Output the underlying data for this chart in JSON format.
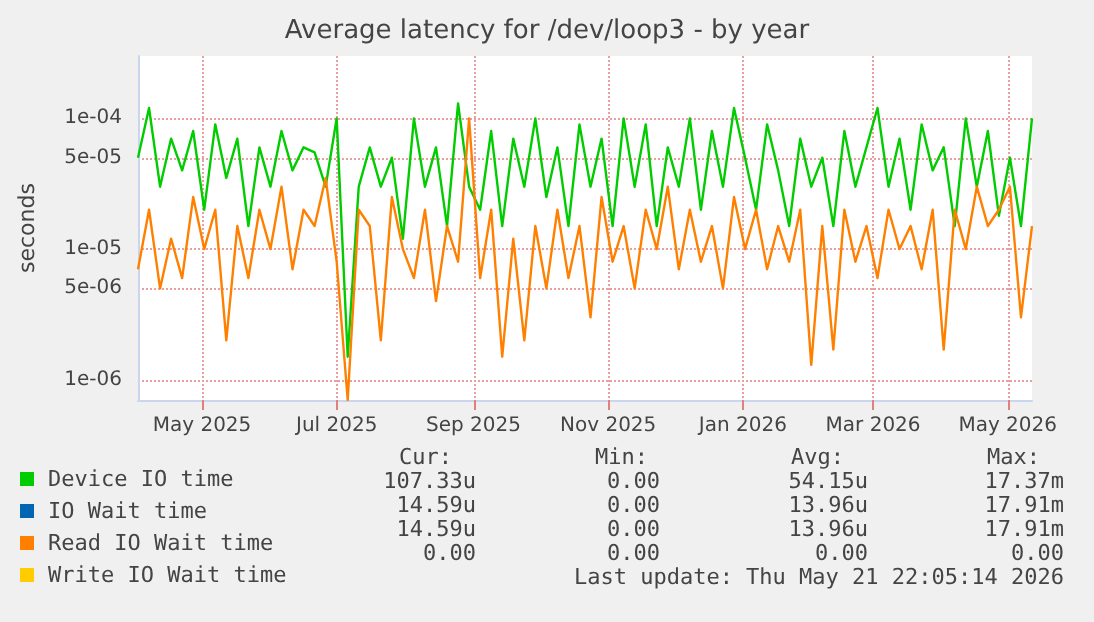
{
  "chart_data": {
    "type": "line",
    "title": "Average latency for /dev/loop3 - by year",
    "ylabel": "seconds",
    "x": [
      "2025-04-02",
      "2025-04-07",
      "2025-04-12",
      "2025-04-17",
      "2025-04-22",
      "2025-04-27",
      "2025-05-02",
      "2025-05-07",
      "2025-05-12",
      "2025-05-17",
      "2025-05-22",
      "2025-05-27",
      "2025-06-01",
      "2025-06-06",
      "2025-06-11",
      "2025-06-16",
      "2025-06-21",
      "2025-06-26",
      "2025-07-01",
      "2025-07-06",
      "2025-07-11",
      "2025-07-16",
      "2025-07-21",
      "2025-07-26",
      "2025-07-31",
      "2025-08-05",
      "2025-08-10",
      "2025-08-15",
      "2025-08-20",
      "2025-08-25",
      "2025-08-30",
      "2025-09-04",
      "2025-09-09",
      "2025-09-14",
      "2025-09-19",
      "2025-09-24",
      "2025-09-29",
      "2025-10-04",
      "2025-10-09",
      "2025-10-14",
      "2025-10-19",
      "2025-10-24",
      "2025-10-29",
      "2025-11-03",
      "2025-11-08",
      "2025-11-13",
      "2025-11-18",
      "2025-11-23",
      "2025-11-28",
      "2025-12-03",
      "2025-12-08",
      "2025-12-13",
      "2025-12-18",
      "2025-12-23",
      "2025-12-28",
      "2026-01-02",
      "2026-01-07",
      "2026-01-12",
      "2026-01-17",
      "2026-01-22",
      "2026-01-27",
      "2026-02-01",
      "2026-02-06",
      "2026-02-11",
      "2026-02-16",
      "2026-02-21",
      "2026-02-26",
      "2026-03-03",
      "2026-03-08",
      "2026-03-13",
      "2026-03-18",
      "2026-03-23",
      "2026-03-28",
      "2026-04-02",
      "2026-04-07",
      "2026-04-12",
      "2026-04-17",
      "2026-04-22",
      "2026-04-27",
      "2026-05-02",
      "2026-05-07",
      "2026-05-12"
    ],
    "series": [
      {
        "name": "Device IO time",
        "color": "#00cc00",
        "values": [
          5e-05,
          0.00012,
          3e-05,
          7e-05,
          4e-05,
          8e-05,
          2e-05,
          9e-05,
          3.5e-05,
          7e-05,
          1.5e-05,
          6e-05,
          3e-05,
          8e-05,
          4e-05,
          6e-05,
          5.5e-05,
          3e-05,
          0.0001,
          1.5e-06,
          3e-05,
          6e-05,
          3e-05,
          5e-05,
          1.2e-05,
          0.0001,
          3e-05,
          6e-05,
          1.5e-05,
          0.00013,
          3e-05,
          2e-05,
          8e-05,
          1.5e-05,
          7e-05,
          3e-05,
          0.0001,
          2.5e-05,
          6e-05,
          1.5e-05,
          9e-05,
          3e-05,
          7e-05,
          1.5e-05,
          0.0001,
          3e-05,
          9e-05,
          1.5e-05,
          6e-05,
          3e-05,
          0.0001,
          2e-05,
          8e-05,
          3e-05,
          0.00012,
          5e-05,
          2e-05,
          9e-05,
          4e-05,
          1.5e-05,
          7e-05,
          3e-05,
          5e-05,
          1.5e-05,
          8e-05,
          3e-05,
          6e-05,
          0.00012,
          3e-05,
          7e-05,
          2e-05,
          9e-05,
          4e-05,
          6e-05,
          1.5e-05,
          0.0001,
          3e-05,
          8e-05,
          1.8e-05,
          5e-05,
          1.5e-05,
          0.0001
        ]
      },
      {
        "name": "IO Wait time",
        "color": "#0066b3",
        "values": [
          null,
          null,
          null,
          null,
          null,
          null,
          null,
          null,
          null,
          null,
          null,
          null,
          null,
          null,
          null,
          null,
          null,
          null,
          null,
          null,
          null,
          null,
          null,
          null,
          null,
          null,
          null,
          null,
          null,
          null,
          null,
          null,
          null,
          null,
          null,
          null,
          null,
          null,
          null,
          null,
          null,
          null,
          null,
          null,
          null,
          null,
          null,
          null,
          null,
          null,
          null,
          null,
          null,
          null,
          null,
          null,
          null,
          null,
          null,
          null,
          null,
          null,
          null,
          null,
          null,
          null,
          null,
          null,
          null,
          null,
          null,
          null,
          null,
          null,
          null,
          null,
          null,
          null,
          null,
          null,
          null,
          null
        ]
      },
      {
        "name": "Read IO Wait time",
        "color": "#ff8000",
        "values": [
          7e-06,
          2e-05,
          5e-06,
          1.2e-05,
          6e-06,
          2.5e-05,
          1e-05,
          2e-05,
          2e-06,
          1.5e-05,
          6e-06,
          2e-05,
          1e-05,
          3e-05,
          7e-06,
          2e-05,
          1.5e-05,
          3.5e-05,
          8e-06,
          7e-07,
          2e-05,
          1.5e-05,
          2e-06,
          2.5e-05,
          1e-05,
          6e-06,
          2e-05,
          4e-06,
          1.5e-05,
          8e-06,
          0.0001,
          6e-06,
          2e-05,
          1.5e-06,
          1.2e-05,
          2e-06,
          1.5e-05,
          5e-06,
          2e-05,
          6e-06,
          1.5e-05,
          3e-06,
          2.5e-05,
          8e-06,
          1.5e-05,
          5e-06,
          2e-05,
          1e-05,
          3e-05,
          7e-06,
          2e-05,
          8e-06,
          1.5e-05,
          5e-06,
          2.5e-05,
          1e-05,
          2e-05,
          7e-06,
          1.5e-05,
          8e-06,
          2e-05,
          1.3e-06,
          1.5e-05,
          1.7e-06,
          2e-05,
          8e-06,
          1.5e-05,
          6e-06,
          2e-05,
          1e-05,
          1.5e-05,
          7e-06,
          2e-05,
          1.7e-06,
          2e-05,
          1e-05,
          3e-05,
          1.5e-05,
          2e-05,
          3e-05,
          3e-06,
          1.5e-05
        ]
      },
      {
        "name": "Write IO Wait time",
        "color": "#ffcc00",
        "values": [
          null,
          null,
          null,
          null,
          null,
          null,
          null,
          null,
          null,
          null,
          null,
          null,
          null,
          null,
          null,
          null,
          null,
          null,
          null,
          null,
          null,
          null,
          null,
          null,
          null,
          null,
          null,
          null,
          null,
          null,
          null,
          null,
          null,
          null,
          null,
          null,
          null,
          null,
          null,
          null,
          null,
          null,
          null,
          null,
          null,
          null,
          null,
          null,
          null,
          null,
          null,
          null,
          null,
          null,
          null,
          null,
          null,
          null,
          null,
          null,
          null,
          null,
          null,
          null,
          null,
          null,
          null,
          null,
          null,
          null,
          null,
          null,
          null,
          null,
          null,
          null,
          null,
          null,
          null,
          null,
          null,
          null
        ]
      }
    ],
    "xlim": [
      "2025-04-02",
      "2026-05-12"
    ],
    "xticks": [
      {
        "value": "2025-05-01",
        "label": "May 2025"
      },
      {
        "value": "2025-07-01",
        "label": "Jul 2025"
      },
      {
        "value": "2025-09-01",
        "label": "Sep 2025"
      },
      {
        "value": "2025-11-01",
        "label": "Nov 2025"
      },
      {
        "value": "2026-01-01",
        "label": "Jan 2026"
      },
      {
        "value": "2026-03-01",
        "label": "Mar 2026"
      },
      {
        "value": "2026-05-01",
        "label": "May 2026"
      }
    ],
    "ylim": [
      7e-07,
      0.0003
    ],
    "yticks": [
      {
        "value": 1e-06,
        "label": "1e-06"
      },
      {
        "value": 5e-06,
        "label": "5e-06"
      },
      {
        "value": 1e-05,
        "label": "1e-05"
      },
      {
        "value": 5e-05,
        "label": "5e-05"
      },
      {
        "value": 0.0001,
        "label": "1e-04"
      }
    ],
    "log": "y",
    "grid": true,
    "marker": "none",
    "legend": "bottom left",
    "annotations": [
      "Cur:",
      "Min:",
      "Avg:",
      "Max:",
      "107.33u",
      "0.00",
      "54.15u",
      "17.37m",
      "14.59u",
      "0.00",
      "13.96u",
      "17.91m",
      "14.59u",
      "0.00",
      "13.96u",
      "17.91m",
      "0.00",
      "0.00",
      "0.00",
      "0.00",
      "Last update: Thu May 21 22:05:14 2026"
    ]
  }
}
